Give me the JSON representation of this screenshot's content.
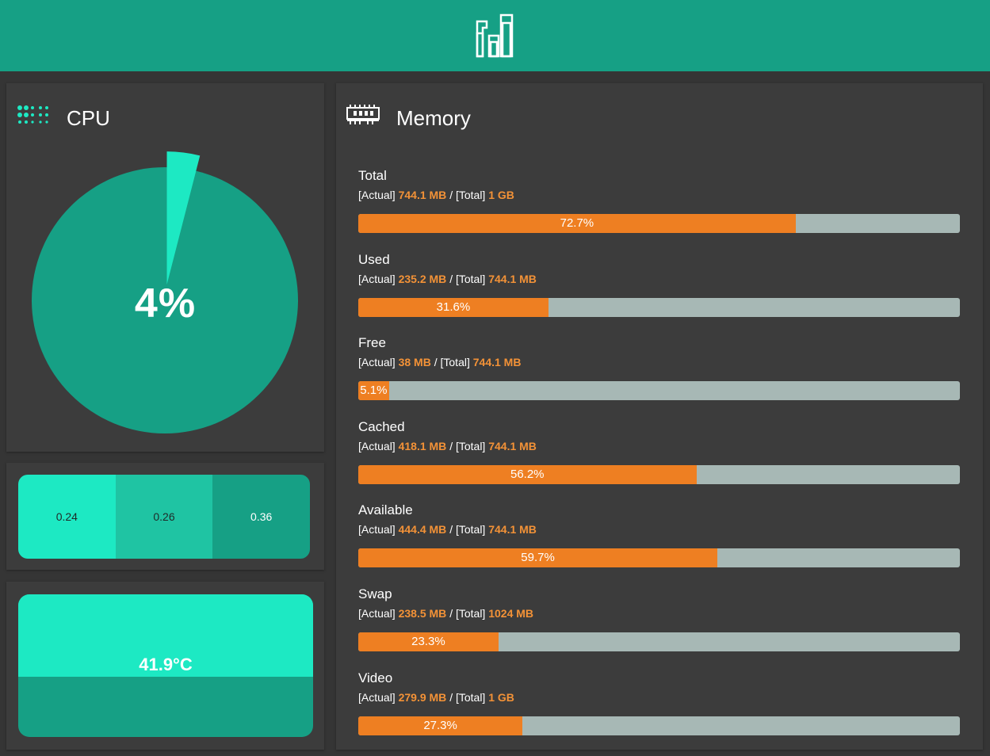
{
  "colors": {
    "header": "#16a085",
    "accent_light": "#1de9c3",
    "accent_mid": "#1fc4a3",
    "accent_dark": "#16a085",
    "bar_fill": "#ee7f22",
    "bar_track": "#a7b8b5",
    "value_orange": "#f39237",
    "panel_bg": "#3c3c3c"
  },
  "header": {
    "logo_icon": "bars-logo-icon"
  },
  "cpu": {
    "title": "CPU",
    "icon": "cpu-dots-icon",
    "usage_percent": 4,
    "usage_label": "4%"
  },
  "load": {
    "values": [
      "0.24",
      "0.26",
      "0.36"
    ]
  },
  "temperature": {
    "label": "41.9°C",
    "fill_fraction": 0.58
  },
  "memory": {
    "title": "Memory",
    "icon": "memory-ram-icon",
    "actual_prefix": "[Actual]",
    "total_prefix": "[Total]",
    "separator": "/",
    "items": [
      {
        "name": "Total",
        "actual": "744.1 MB",
        "total": "1 GB",
        "percent": 72.7,
        "percent_label": "72.7%"
      },
      {
        "name": "Used",
        "actual": "235.2 MB",
        "total": "744.1 MB",
        "percent": 31.6,
        "percent_label": "31.6%"
      },
      {
        "name": "Free",
        "actual": "38 MB",
        "total": "744.1 MB",
        "percent": 5.1,
        "percent_label": "5.1%"
      },
      {
        "name": "Cached",
        "actual": "418.1 MB",
        "total": "744.1 MB",
        "percent": 56.2,
        "percent_label": "56.2%"
      },
      {
        "name": "Available",
        "actual": "444.4 MB",
        "total": "744.1 MB",
        "percent": 59.7,
        "percent_label": "59.7%"
      },
      {
        "name": "Swap",
        "actual": "238.5 MB",
        "total": "1024 MB",
        "percent": 23.3,
        "percent_label": "23.3%"
      },
      {
        "name": "Video",
        "actual": "279.9 MB",
        "total": "1 GB",
        "percent": 27.3,
        "percent_label": "27.3%"
      }
    ]
  }
}
